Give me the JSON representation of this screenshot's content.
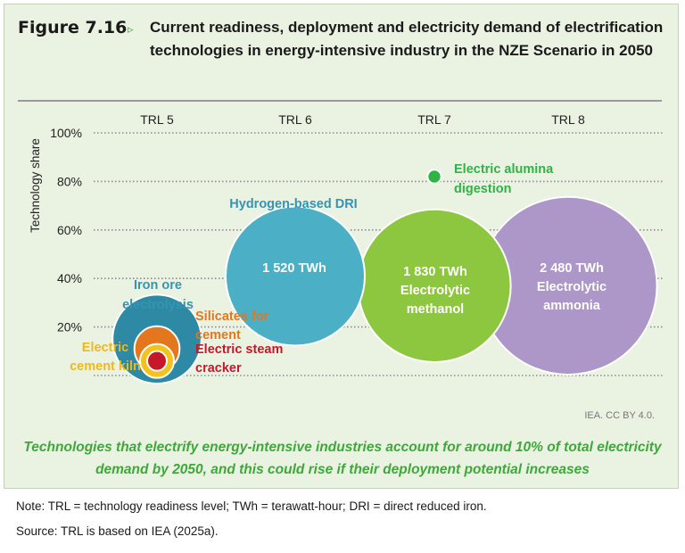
{
  "figure": {
    "label": "Figure 7.16",
    "arrow": "▹",
    "title": "Current readiness, deployment and electricity demand of electrification technologies in energy-intensive industry in the NZE Scenario in 2050"
  },
  "chart_data": {
    "type": "scatter",
    "subtype": "bubble",
    "ylabel": "Technology share",
    "xlabel": "",
    "categories": [
      "TRL 5",
      "TRL 6",
      "TRL 7",
      "TRL 8"
    ],
    "y_ticks": [
      "20%",
      "40%",
      "60%",
      "80%",
      "100%"
    ],
    "ylim": [
      0,
      100
    ],
    "grid": true,
    "points": [
      {
        "name": "Iron ore electrolysis",
        "trl": 5,
        "share": 15,
        "size_twh": 620,
        "color": "#2e8aa4",
        "label_color": "#3594b2"
      },
      {
        "name": "Silicates for cement",
        "trl": 5,
        "share": 11,
        "size_twh": 160,
        "color": "#e4771d",
        "label_color": "#e4771d"
      },
      {
        "name": "Electric cement kiln",
        "trl": 5,
        "share": 6,
        "size_twh": 90,
        "color": "#f3c21b",
        "label_color": "#f0b91b"
      },
      {
        "name": "Electric steam cracker",
        "trl": 5,
        "share": 6,
        "size_twh": 30,
        "color": "#c5182a",
        "label_color": "#c5182a"
      },
      {
        "name": "Hydrogen-based DRI",
        "trl": 6,
        "share": 41,
        "size_twh": 1520,
        "value_label": "1 520 TWh",
        "color": "#4bafc6",
        "label_color": "#3594b2"
      },
      {
        "name": "Electric alumina digestion",
        "trl": 7,
        "share": 82,
        "size_twh": 15,
        "color": "#2fb346",
        "label_color": "#2fb346"
      },
      {
        "name": "Electrolytic methanol",
        "trl": 7,
        "share": 37,
        "size_twh": 1830,
        "value_label": "1 830 TWh",
        "color": "#8dc63f",
        "label_color": "#ffffff"
      },
      {
        "name": "Electrolytic ammonia",
        "trl": 8,
        "share": 37,
        "size_twh": 2480,
        "value_label": "2 480 TWh",
        "color": "#ad97c9",
        "label_color": "#ffffff"
      }
    ],
    "labels": [
      {
        "text": "Iron ore"
      },
      {
        "text": "electrolysis"
      },
      {
        "text": "Silicates for"
      },
      {
        "text": "cement"
      },
      {
        "text": "Electric"
      },
      {
        "text": "cement kiln"
      },
      {
        "text": "Electric steam"
      },
      {
        "text": "cracker"
      },
      {
        "text": "Hydrogen-based DRI"
      },
      {
        "text": "Electric alumina"
      },
      {
        "text": "digestion"
      },
      {
        "text": "1 520 TWh"
      },
      {
        "text": "1 830 TWh"
      },
      {
        "text": "Electrolytic"
      },
      {
        "text": "methanol"
      },
      {
        "text": "2 480 TWh"
      },
      {
        "text": "Electrolytic"
      },
      {
        "text": "ammonia"
      }
    ]
  },
  "credit": "IEA. CC BY 4.0.",
  "caption": "Technologies that electrify energy-intensive industries account for around 10% of total electricity demand by 2050, and this could rise if their deployment potential increases",
  "note": "Note: TRL = technology readiness level; TWh = terawatt-hour; DRI = direct reduced iron.",
  "source": "Source: TRL is based on IEA (2025a)."
}
